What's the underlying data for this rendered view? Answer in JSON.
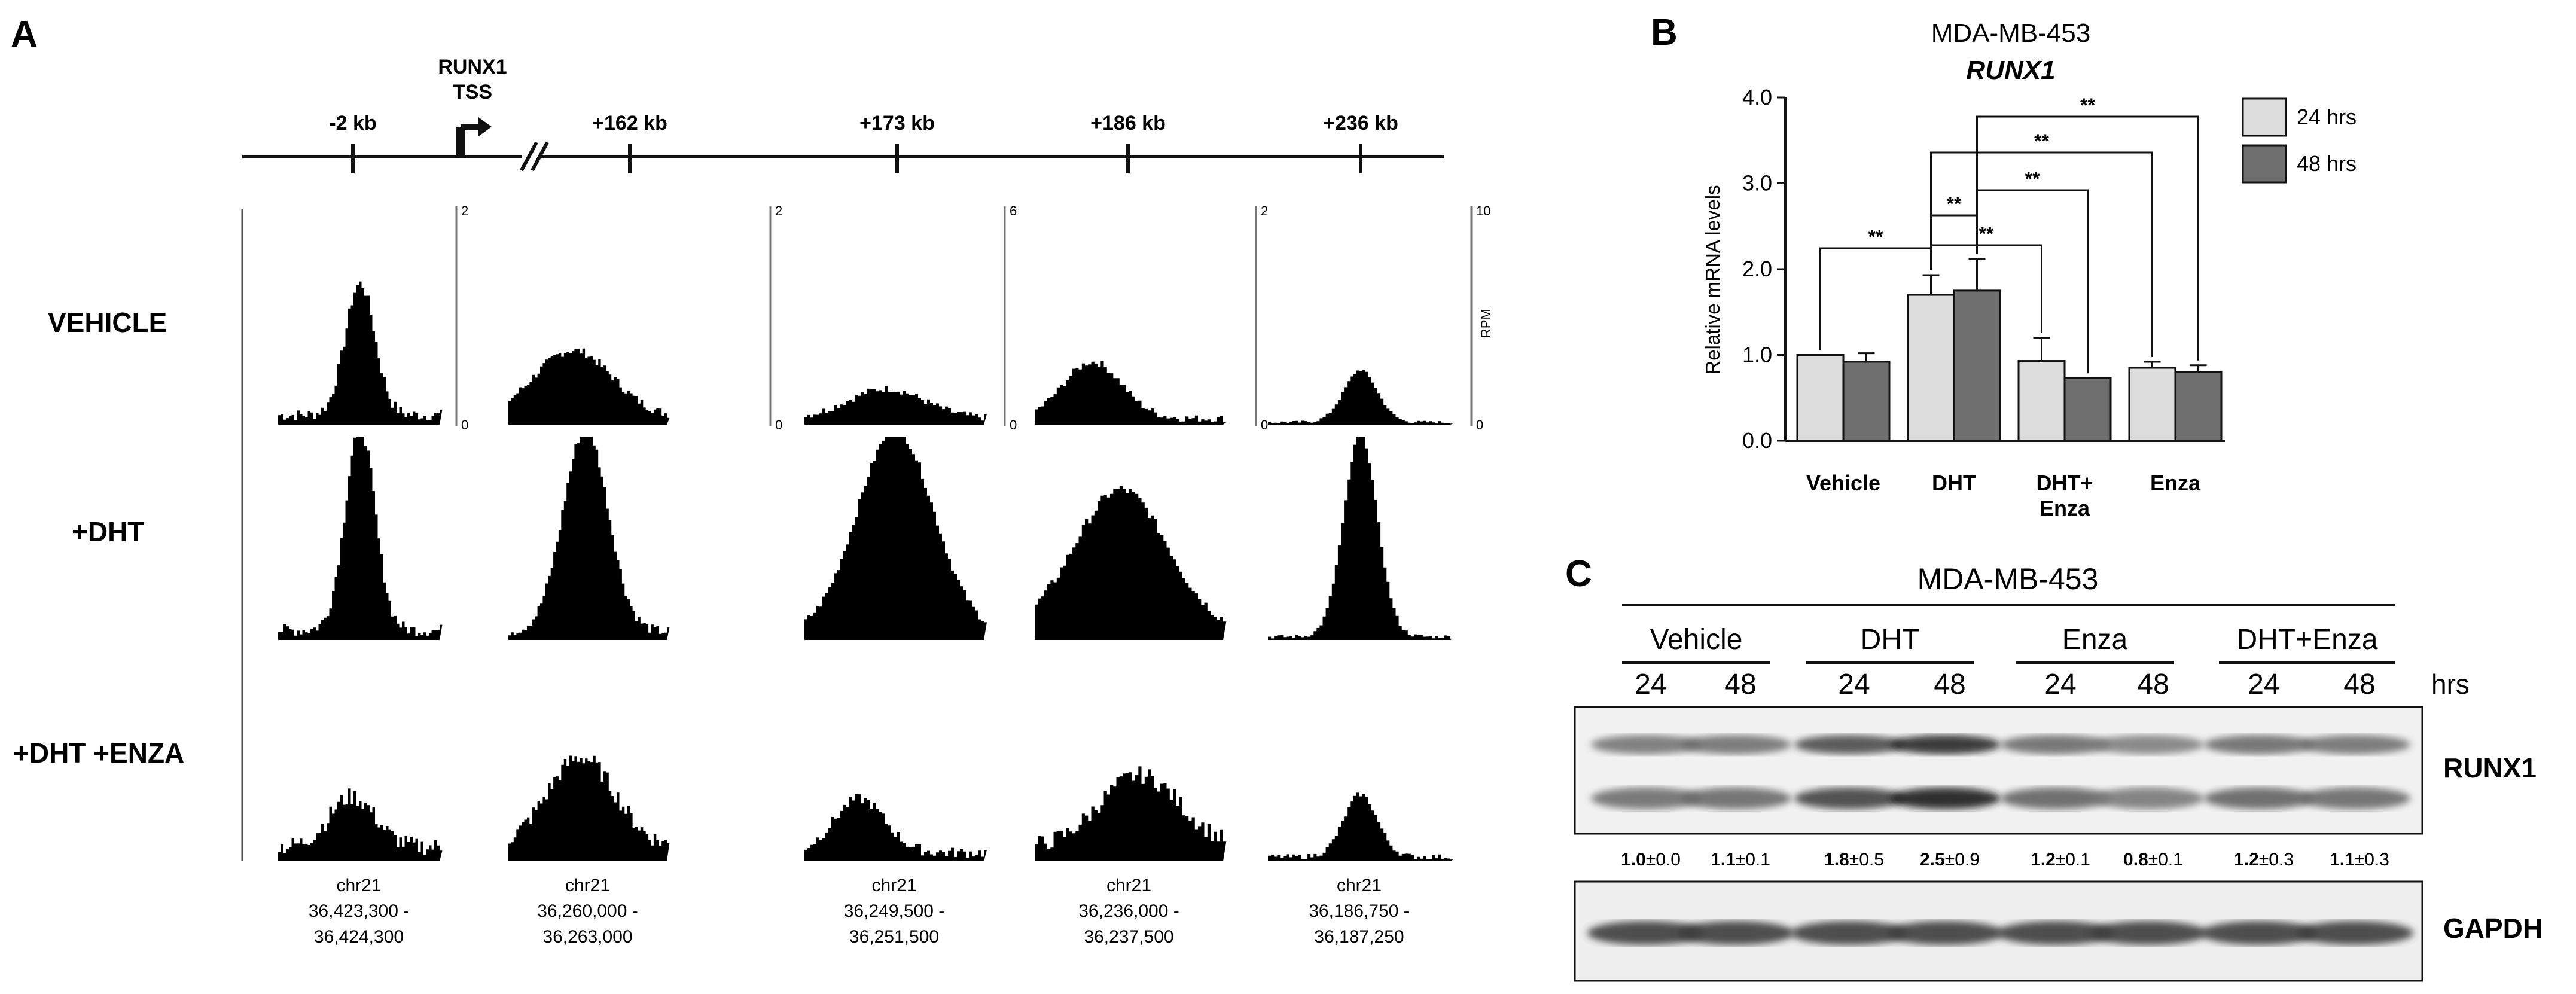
{
  "panelA": {
    "label": "A",
    "tss": {
      "line1": "RUNX1",
      "line2": "TSS"
    },
    "kb_labels": [
      "-2 kb",
      "+162 kb",
      "+173 kb",
      "+186 kb",
      "+236 kb"
    ],
    "conditions": [
      "VEHICLE",
      "+DHT",
      "+DHT +ENZA"
    ],
    "scales": [
      {
        "max": "2",
        "min": "0"
      },
      {
        "max": "2",
        "min": "0"
      },
      {
        "max": "6",
        "min": "0"
      },
      {
        "max": "2",
        "min": "0"
      },
      {
        "max": "10",
        "min": "0"
      }
    ],
    "scale_unit": "RPM",
    "regions": [
      {
        "chr": "chr21",
        "start": "36,423,300 -",
        "end": "36,424,300"
      },
      {
        "chr": "chr21",
        "start": "36,260,000 -",
        "end": "36,263,000"
      },
      {
        "chr": "chr21",
        "start": "36,249,500 -",
        "end": "36,251,500"
      },
      {
        "chr": "chr21",
        "start": "36,236,000 -",
        "end": "36,237,500"
      },
      {
        "chr": "chr21",
        "start": "36,186,750 -",
        "end": "36,187,250"
      }
    ],
    "peaks": [
      [
        {
          "peaks": [
            [
              0.5,
              0.88,
              0.13
            ]
          ],
          "noise": 0.08
        },
        {
          "peaks": [
            [
              0.4,
              0.45,
              0.35
            ]
          ],
          "noise": 0.06
        },
        {
          "peaks": [
            [
              0.45,
              0.2,
              0.3
            ]
          ],
          "noise": 0.05
        },
        {
          "peaks": [
            [
              0.3,
              0.38,
              0.22
            ]
          ],
          "noise": 0.05
        },
        {
          "peaks": [
            [
              0.5,
              0.35,
              0.13
            ]
          ],
          "noise": 0.02
        }
      ],
      [
        {
          "peaks": [
            [
              0.5,
              1.0,
              0.13
            ]
          ],
          "noise": 0.06
        },
        {
          "peaks": [
            [
              0.48,
              1.0,
              0.2
            ]
          ],
          "noise": 0.05
        },
        {
          "peaks": [
            [
              0.5,
              1.0,
              0.3
            ]
          ],
          "noise": 0.04
        },
        {
          "peaks": [
            [
              0.45,
              0.7,
              0.35
            ]
          ],
          "noise": 0.05
        },
        {
          "peaks": [
            [
              0.5,
              1.0,
              0.13
            ]
          ],
          "noise": 0.02
        }
      ],
      [
        {
          "peaks": [
            [
              0.45,
              0.28,
              0.2
            ]
          ],
          "noise": 0.1
        },
        {
          "peaks": [
            [
              0.45,
              0.5,
              0.3
            ]
          ],
          "noise": 0.1
        },
        {
          "peaks": [
            [
              0.3,
              0.3,
              0.2
            ]
          ],
          "noise": 0.06
        },
        {
          "peaks": [
            [
              0.55,
              0.4,
              0.3
            ]
          ],
          "noise": 0.1
        },
        {
          "peaks": [
            [
              0.5,
              0.35,
              0.13
            ]
          ],
          "noise": 0.03
        }
      ]
    ]
  },
  "panelB": {
    "label": "B",
    "title1": "MDA-MB-453",
    "title2": "RUNX1",
    "chart_data": {
      "type": "bar",
      "categories": [
        "Vehicle",
        "DHT",
        "DHT+\nEnza",
        "Enza"
      ],
      "category_lines": [
        [
          "Vehicle"
        ],
        [
          "DHT"
        ],
        [
          "DHT+",
          "Enza"
        ],
        [
          "Enza"
        ]
      ],
      "series": [
        {
          "name": "24 hrs",
          "values": [
            1.0,
            1.7,
            0.93,
            0.85
          ],
          "errors": [
            0.0,
            0.23,
            0.27,
            0.07
          ]
        },
        {
          "name": "48 hrs",
          "values": [
            0.92,
            1.75,
            0.73,
            0.8
          ],
          "errors": [
            0.1,
            0.37,
            0.0,
            0.08
          ]
        }
      ],
      "ylabel": "Relative mRNA levels",
      "ylim": [
        0,
        4.0
      ],
      "yticks": [
        "0.0",
        "1.0",
        "2.0",
        "3.0",
        "4.0"
      ],
      "colors": [
        "#dcdcdc",
        "#6f6f6f"
      ],
      "significance": "**"
    }
  },
  "panelC": {
    "label": "C",
    "title": "MDA-MB-453",
    "groups": [
      "Vehicle",
      "DHT",
      "Enza",
      "DHT+Enza"
    ],
    "times": [
      "24",
      "48",
      "24",
      "48",
      "24",
      "48",
      "24",
      "48"
    ],
    "time_unit": "hrs",
    "blot1": "RUNX1",
    "blot2": "GAPDH",
    "quant": [
      {
        "b": "1.0",
        "r": "±0.0"
      },
      {
        "b": "1.1",
        "r": "±0.1"
      },
      {
        "b": "1.8",
        "r": "±0.5"
      },
      {
        "b": "2.5",
        "r": "±0.9"
      },
      {
        "b": "1.2",
        "r": "±0.1"
      },
      {
        "b": "0.8",
        "r": "±0.1"
      },
      {
        "b": "1.2",
        "r": "±0.3"
      },
      {
        "b": "1.1",
        "r": "±0.3"
      }
    ],
    "runx1_intensity": [
      1.0,
      1.1,
      1.8,
      2.5,
      1.2,
      0.8,
      1.2,
      1.1
    ]
  }
}
